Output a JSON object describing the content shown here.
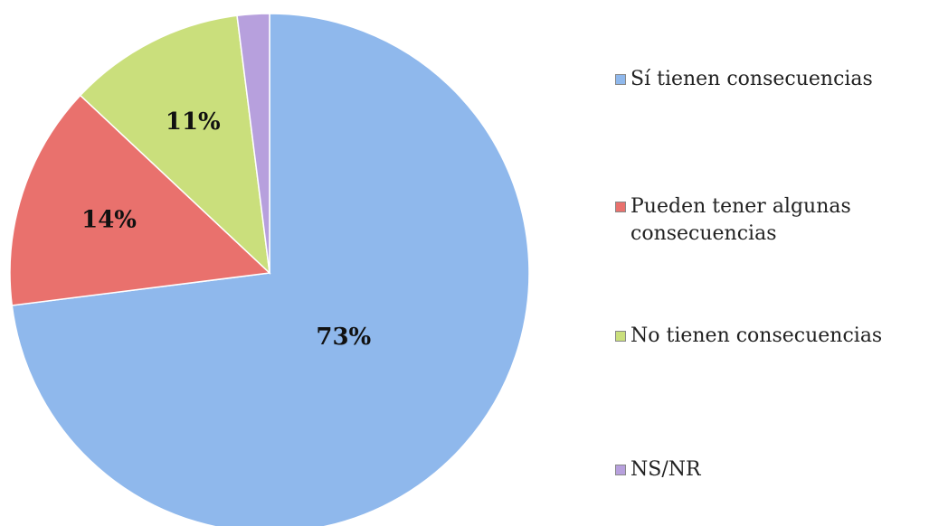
{
  "chart_data": {
    "type": "pie",
    "categories": [
      "Sí tienen consecuencias",
      "Pueden tener algunas consecuencias",
      "No tienen consecuencias",
      "NS/NR"
    ],
    "values": [
      73,
      14,
      11,
      2
    ],
    "value_labels": [
      "73%",
      "14%",
      "11%",
      null
    ],
    "colors": [
      "#8fb8ec",
      "#e9716d",
      "#cadf7c",
      "#b7a0dd"
    ],
    "legend": "right"
  }
}
